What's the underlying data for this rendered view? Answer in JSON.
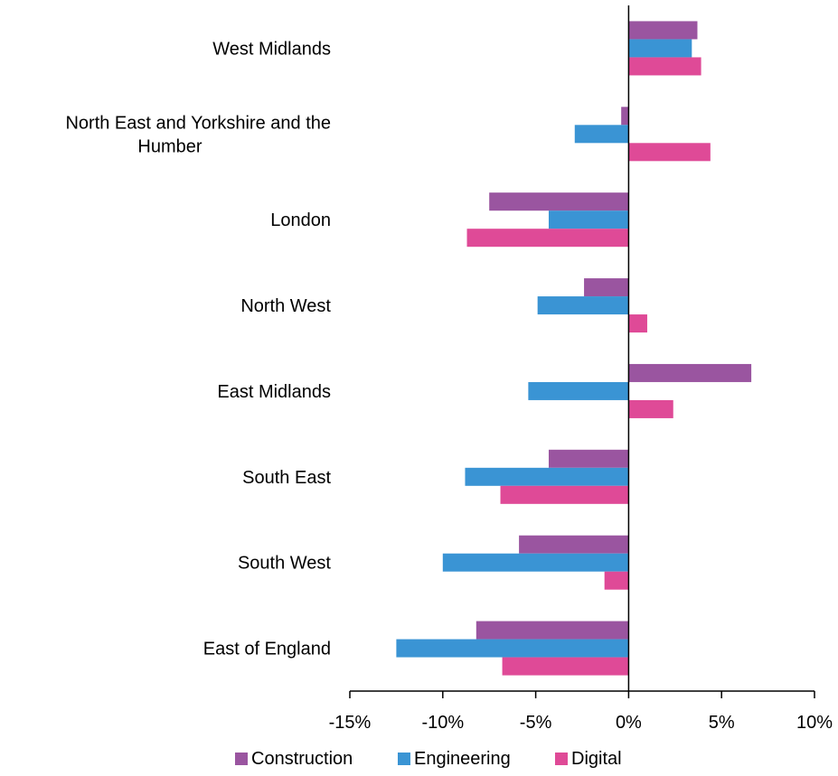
{
  "chart_data": {
    "type": "bar",
    "orientation": "horizontal",
    "categories": [
      "West Midlands",
      "North East and Yorkshire and the Humber",
      "London",
      "North West",
      "East Midlands",
      "South East",
      "South West",
      "East of England"
    ],
    "category_label_lines": [
      [
        "West Midlands"
      ],
      [
        "North East and Yorkshire and the",
        "Humber"
      ],
      [
        "London"
      ],
      [
        "North West"
      ],
      [
        "East Midlands"
      ],
      [
        "South East"
      ],
      [
        "South West"
      ],
      [
        "East of England"
      ]
    ],
    "series": [
      {
        "name": "Construction",
        "color": "#9a55a0",
        "values": [
          3.7,
          -0.4,
          -7.5,
          -2.4,
          6.6,
          -4.3,
          -5.9,
          -8.2
        ]
      },
      {
        "name": "Engineering",
        "color": "#3a94d4",
        "values": [
          3.4,
          -2.9,
          -4.3,
          -4.9,
          -5.4,
          -8.8,
          -10.0,
          -12.5
        ]
      },
      {
        "name": "Digital",
        "color": "#df4a97",
        "values": [
          3.9,
          4.4,
          -8.7,
          1.0,
          2.4,
          -6.9,
          -1.3,
          -6.8
        ]
      }
    ],
    "xlim": [
      -15,
      10
    ],
    "xticks": [
      -15,
      -10,
      -5,
      0,
      5,
      10
    ],
    "xtick_labels": [
      "-15%",
      "-10%",
      "-5%",
      "0%",
      "5%",
      "10%"
    ],
    "title": "",
    "xlabel": "",
    "ylabel": "",
    "legend_position": "bottom",
    "grid": false
  }
}
